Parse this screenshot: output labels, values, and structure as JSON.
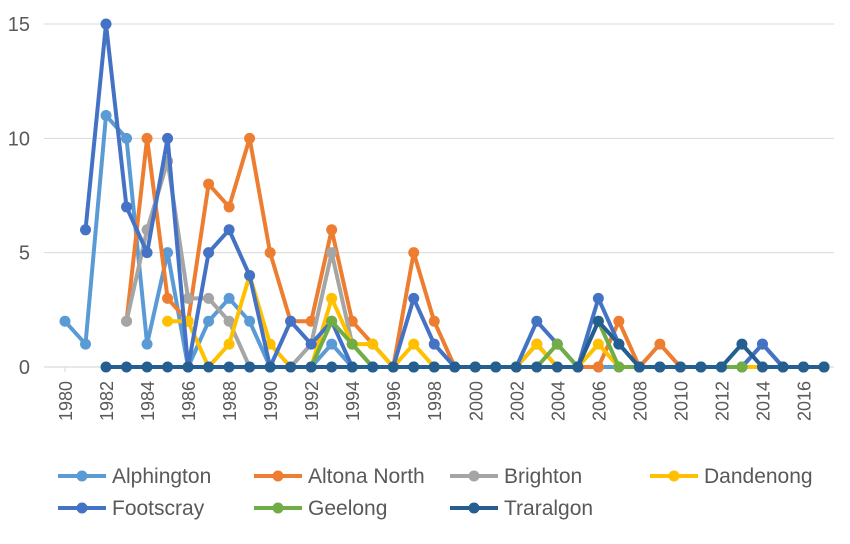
{
  "chart_data": {
    "type": "line",
    "title": "",
    "xlabel": "",
    "ylabel": "",
    "ylim": [
      0,
      15
    ],
    "y_ticks": [
      0,
      5,
      10,
      15
    ],
    "x_ticks": [
      "1980",
      "1982",
      "1984",
      "1986",
      "1988",
      "1990",
      "1992",
      "1994",
      "1996",
      "1998",
      "2000",
      "2002",
      "2004",
      "2006",
      "2008",
      "2010",
      "2012",
      "2014",
      "2016"
    ],
    "x_start": 1980,
    "x_end": 2017,
    "grid": "horizontal",
    "legend_position": "bottom",
    "series": [
      {
        "name": "Alphington",
        "color": "#5B9BD5",
        "points": [
          [
            1980,
            2
          ],
          [
            1981,
            1
          ],
          [
            1982,
            11
          ],
          [
            1983,
            10
          ],
          [
            1984,
            1
          ],
          [
            1985,
            5
          ],
          [
            1986,
            0
          ],
          [
            1987,
            2
          ],
          [
            1988,
            3
          ],
          [
            1989,
            2
          ],
          [
            1990,
            0
          ],
          [
            1991,
            0
          ],
          [
            1992,
            0
          ],
          [
            1993,
            1
          ],
          [
            1994,
            0
          ],
          [
            1995,
            0
          ],
          [
            1996,
            0
          ],
          [
            1997,
            0
          ],
          [
            1998,
            0
          ],
          [
            1999,
            0
          ],
          [
            2000,
            0
          ],
          [
            2001,
            0
          ],
          [
            2002,
            0
          ],
          [
            2003,
            1
          ],
          [
            2004,
            0
          ],
          [
            2005,
            0
          ],
          [
            2006,
            0
          ],
          [
            2007,
            0
          ],
          [
            2008,
            0
          ],
          [
            2009,
            0
          ],
          [
            2010,
            0
          ],
          [
            2011,
            0
          ],
          [
            2012,
            0
          ],
          [
            2013,
            0
          ],
          [
            2014,
            1
          ],
          [
            2015,
            0
          ],
          [
            2016,
            0
          ],
          [
            2017,
            0
          ]
        ]
      },
      {
        "name": "Altona North",
        "color": "#ED7D31",
        "points": [
          [
            1983,
            2
          ],
          [
            1984,
            10
          ],
          [
            1985,
            3
          ],
          [
            1986,
            2
          ],
          [
            1987,
            8
          ],
          [
            1988,
            7
          ],
          [
            1989,
            10
          ],
          [
            1990,
            5
          ],
          [
            1991,
            2
          ],
          [
            1992,
            2
          ],
          [
            1993,
            6
          ],
          [
            1994,
            2
          ],
          [
            1995,
            1
          ],
          [
            1996,
            0
          ],
          [
            1997,
            5
          ],
          [
            1998,
            2
          ],
          [
            1999,
            0
          ],
          [
            2000,
            0
          ],
          [
            2001,
            0
          ],
          [
            2002,
            0
          ],
          [
            2003,
            0
          ],
          [
            2004,
            0
          ],
          [
            2005,
            0
          ],
          [
            2006,
            0
          ],
          [
            2007,
            2
          ],
          [
            2008,
            0
          ],
          [
            2009,
            1
          ],
          [
            2010,
            0
          ],
          [
            2011,
            0
          ],
          [
            2012,
            0
          ],
          [
            2013,
            0
          ],
          [
            2014,
            0
          ],
          [
            2015,
            0
          ],
          [
            2016,
            0
          ],
          [
            2017,
            0
          ]
        ]
      },
      {
        "name": "Brighton",
        "color": "#A5A5A5",
        "points": [
          [
            1983,
            2
          ],
          [
            1984,
            6
          ],
          [
            1985,
            9
          ],
          [
            1986,
            3
          ],
          [
            1987,
            3
          ],
          [
            1988,
            2
          ],
          [
            1989,
            0
          ],
          [
            1990,
            0
          ],
          [
            1991,
            0
          ],
          [
            1992,
            1
          ],
          [
            1993,
            5
          ],
          [
            1994,
            1
          ],
          [
            1995,
            0
          ]
        ]
      },
      {
        "name": "Dandenong",
        "color": "#FFC000",
        "points": [
          [
            1985,
            2
          ],
          [
            1986,
            2
          ],
          [
            1987,
            0
          ],
          [
            1988,
            1
          ],
          [
            1989,
            4
          ],
          [
            1990,
            1
          ],
          [
            1991,
            0
          ],
          [
            1992,
            0
          ],
          [
            1993,
            3
          ],
          [
            1994,
            1
          ],
          [
            1995,
            1
          ],
          [
            1996,
            0
          ],
          [
            1997,
            1
          ],
          [
            1998,
            0
          ],
          [
            1999,
            0
          ],
          [
            2000,
            0
          ],
          [
            2001,
            0
          ],
          [
            2002,
            0
          ],
          [
            2003,
            1
          ],
          [
            2004,
            0
          ],
          [
            2005,
            0
          ],
          [
            2006,
            1
          ],
          [
            2007,
            0
          ],
          [
            2008,
            0
          ],
          [
            2009,
            0
          ],
          [
            2010,
            0
          ],
          [
            2011,
            0
          ],
          [
            2012,
            0
          ],
          [
            2013,
            0
          ],
          [
            2014,
            0
          ],
          [
            2015,
            0
          ],
          [
            2016,
            0
          ],
          [
            2017,
            0
          ]
        ]
      },
      {
        "name": "Footscray",
        "color": "#4472C4",
        "points": [
          [
            1981,
            6
          ],
          [
            1982,
            15
          ],
          [
            1983,
            7
          ],
          [
            1984,
            5
          ],
          [
            1985,
            10
          ],
          [
            1986,
            0
          ],
          [
            1987,
            5
          ],
          [
            1988,
            6
          ],
          [
            1989,
            4
          ],
          [
            1990,
            0
          ],
          [
            1991,
            2
          ],
          [
            1992,
            1
          ],
          [
            1993,
            2
          ],
          [
            1994,
            0
          ],
          [
            1995,
            0
          ],
          [
            1996,
            0
          ],
          [
            1997,
            3
          ],
          [
            1998,
            1
          ],
          [
            1999,
            0
          ],
          [
            2000,
            0
          ],
          [
            2001,
            0
          ],
          [
            2002,
            0
          ],
          [
            2003,
            2
          ],
          [
            2004,
            1
          ],
          [
            2005,
            0
          ],
          [
            2006,
            3
          ],
          [
            2007,
            1
          ],
          [
            2008,
            0
          ],
          [
            2009,
            0
          ],
          [
            2010,
            0
          ],
          [
            2011,
            0
          ],
          [
            2012,
            0
          ],
          [
            2013,
            0
          ],
          [
            2014,
            1
          ],
          [
            2015,
            0
          ],
          [
            2016,
            0
          ],
          [
            2017,
            0
          ]
        ]
      },
      {
        "name": "Geelong",
        "color": "#70AD47",
        "points": [
          [
            1992,
            0
          ],
          [
            1993,
            2
          ],
          [
            1994,
            1
          ],
          [
            1995,
            0
          ],
          [
            1996,
            0
          ],
          [
            1997,
            0
          ],
          [
            1998,
            0
          ],
          [
            1999,
            0
          ],
          [
            2000,
            0
          ],
          [
            2001,
            0
          ],
          [
            2002,
            0
          ],
          [
            2003,
            0
          ],
          [
            2004,
            1
          ],
          [
            2005,
            0
          ],
          [
            2006,
            2
          ],
          [
            2007,
            0
          ],
          [
            2008,
            0
          ],
          [
            2009,
            0
          ],
          [
            2010,
            0
          ],
          [
            2011,
            0
          ],
          [
            2012,
            0
          ],
          [
            2013,
            0
          ]
        ]
      },
      {
        "name": "Traralgon",
        "color": "#255E91",
        "points": [
          [
            1982,
            0
          ],
          [
            1983,
            0
          ],
          [
            1984,
            0
          ],
          [
            1985,
            0
          ],
          [
            1986,
            0
          ],
          [
            1987,
            0
          ],
          [
            1988,
            0
          ],
          [
            1989,
            0
          ],
          [
            1990,
            0
          ],
          [
            1991,
            0
          ],
          [
            1992,
            0
          ],
          [
            1993,
            0
          ],
          [
            1994,
            0
          ],
          [
            1995,
            0
          ],
          [
            1996,
            0
          ],
          [
            1997,
            0
          ],
          [
            1998,
            0
          ],
          [
            1999,
            0
          ],
          [
            2000,
            0
          ],
          [
            2001,
            0
          ],
          [
            2002,
            0
          ],
          [
            2003,
            0
          ],
          [
            2004,
            0
          ],
          [
            2005,
            0
          ],
          [
            2006,
            2
          ],
          [
            2007,
            1
          ],
          [
            2008,
            0
          ],
          [
            2009,
            0
          ],
          [
            2010,
            0
          ],
          [
            2011,
            0
          ],
          [
            2012,
            0
          ],
          [
            2013,
            1
          ],
          [
            2014,
            0
          ],
          [
            2015,
            0
          ],
          [
            2016,
            0
          ],
          [
            2017,
            0
          ]
        ]
      }
    ]
  }
}
